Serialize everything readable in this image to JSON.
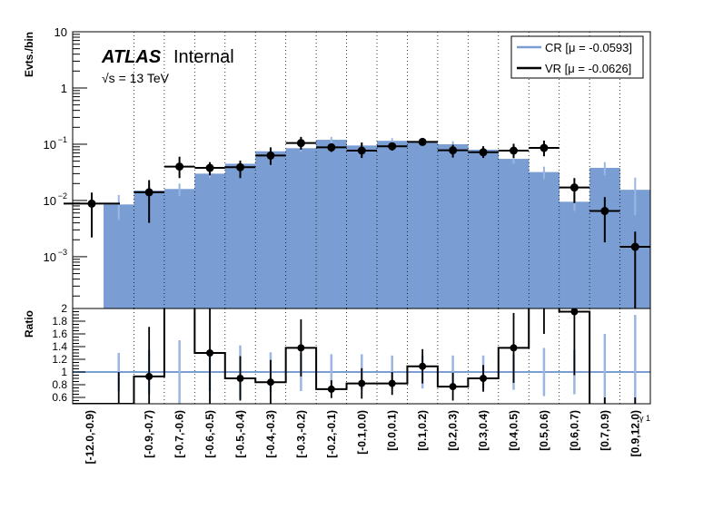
{
  "chart_data": {
    "type": "histogram-ratio",
    "upper_panel": {
      "ylabel": "Evts./bin",
      "yscale": "log",
      "ylim": [
        0.00012,
        10
      ],
      "y_ticks": [
        {
          "value": 10,
          "label": "10"
        },
        {
          "value": 1,
          "label": "1"
        },
        {
          "value": 0.1,
          "label": "10^-1",
          "base": "10",
          "exp": "−1"
        },
        {
          "value": 0.01,
          "label": "10^-2",
          "base": "10",
          "exp": "−2"
        },
        {
          "value": 0.001,
          "label": "10^-3",
          "base": "10",
          "exp": "−3"
        }
      ],
      "atlas_label": "ATLAS",
      "atlas_sublabel": "Internal",
      "energy_label": "√s = 13 TeV",
      "legend_placement": "top-right",
      "series": [
        {
          "name": "CR [μ = -0.0593]",
          "style": "filled",
          "color": "#7a9ed4",
          "values": [
            0.0085,
            0.015,
            0.016,
            0.03,
            0.045,
            0.075,
            0.085,
            0.12,
            0.095,
            0.115,
            0.11,
            0.1,
            0.08,
            0.055,
            0.032,
            0.0095,
            0.038,
            0.0155
          ],
          "errors": [
            0.004,
            0.004,
            0.004,
            0.005,
            0.006,
            0.01,
            0.012,
            0.015,
            0.012,
            0.013,
            0.013,
            0.013,
            0.012,
            0.01,
            0.008,
            0.003,
            0.01,
            0.01
          ]
        },
        {
          "name": "VR [μ = -0.0626]",
          "style": "points",
          "color": "#000000",
          "values": [
            0.0088,
            0.014,
            0.04,
            0.038,
            0.039,
            0.063,
            0.105,
            0.088,
            0.077,
            0.092,
            0.11,
            0.078,
            0.072,
            0.077,
            0.086,
            0.017,
            0.0065,
            0.0015
          ],
          "err_up": [
            0.005,
            0.009,
            0.02,
            0.01,
            0.012,
            0.025,
            0.03,
            0.015,
            0.03,
            0.015,
            0.015,
            0.02,
            0.02,
            0.025,
            0.03,
            0.008,
            0.005,
            0.0013
          ],
          "err_down": [
            0.0066,
            0.01,
            0.015,
            0.01,
            0.014,
            0.02,
            0.025,
            0.015,
            0.02,
            0.015,
            0.015,
            0.02,
            0.015,
            0.02,
            0.025,
            0.008,
            0.0047,
            0.0014
          ]
        }
      ]
    },
    "lower_panel": {
      "ylabel": "Ratio",
      "ylim": [
        0.5,
        2.0
      ],
      "y_ticks": [
        "0.6",
        "0.8",
        "1",
        "1.2",
        "1.4",
        "1.6",
        "1.8",
        "2"
      ],
      "reference_line": 1.0,
      "cr_band_half_height": [
        0.3,
        0.35,
        0.5,
        0.3,
        0.42,
        0.31,
        0.3,
        0.28,
        0.28,
        0.26,
        0.26,
        0.26,
        0.26,
        0.28,
        0.38,
        0.35,
        0.6,
        0.9
      ],
      "vr_ratio": [
        0.5,
        0.93,
        2.5,
        1.3,
        0.9,
        0.84,
        1.38,
        0.73,
        0.82,
        0.82,
        1.09,
        0.77,
        0.9,
        1.38,
        2.5,
        1.95,
        0.3,
        0.3
      ],
      "vr_ratio_err": [
        0.5,
        0.78,
        0.5,
        0.8,
        0.35,
        0.35,
        0.45,
        0.14,
        0.24,
        0.18,
        0.27,
        0.22,
        0.21,
        0.55,
        0.9,
        1.0,
        0.3,
        0.3
      ],
      "vr_marker_shown": [
        false,
        true,
        false,
        true,
        true,
        true,
        true,
        true,
        true,
        true,
        true,
        true,
        true,
        true,
        false,
        true,
        false,
        false
      ]
    },
    "categories": [
      "[-12.0,-0.9)",
      "[-0.9,-0.7)",
      "[-0.7,-0.6)",
      "[-0.6,-0.5)",
      "[-0.5,-0.4)",
      "[-0.4,-0.3)",
      "[-0.3,-0.2)",
      "[-0.2,-0.1)",
      "[-0.1,0.0)",
      "[0.0,0.1)",
      "[0.1,0.2)",
      "[0.2,0.3)",
      "[0.3,0.4)",
      "[0.4,0.5)",
      "[0.5,0.6)",
      "[0.6,0.7)",
      "[0.7,0.9)",
      "[0.9,12.0)"
    ],
    "xlabel": "γ 1",
    "grid": "vertical dotted"
  }
}
